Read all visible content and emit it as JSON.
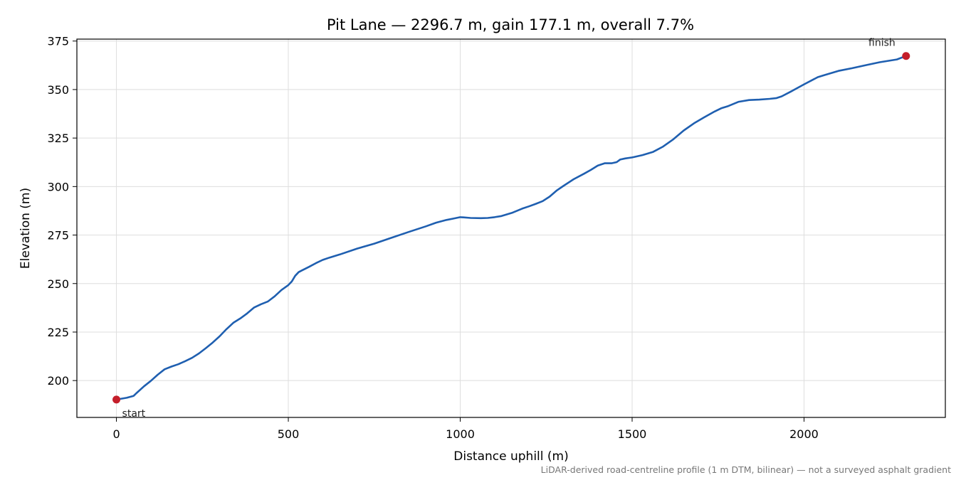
{
  "chart_data": {
    "type": "line",
    "title": "Pit Lane — 2296.7 m, gain 177.1 m, overall 7.7%",
    "xlabel": "Distance uphill (m)",
    "ylabel": "Elevation (m)",
    "xlim": [
      -115,
      2411
    ],
    "ylim": [
      181,
      376
    ],
    "x_ticks": [
      0,
      500,
      1000,
      1500,
      2000
    ],
    "y_ticks": [
      200,
      225,
      250,
      275,
      300,
      325,
      350,
      375
    ],
    "grid": true,
    "footnote": "LiDAR-derived road-centreline profile (1 m DTM, bilinear) — not a surveyed asphalt gradient",
    "series": [
      {
        "color": "#1f5fb0",
        "x": [
          0,
          30,
          50,
          60,
          80,
          100,
          120,
          140,
          160,
          180,
          200,
          220,
          240,
          260,
          280,
          300,
          320,
          340,
          360,
          380,
          400,
          420,
          440,
          460,
          480,
          500,
          510,
          520,
          530,
          540,
          560,
          580,
          600,
          620,
          650,
          700,
          750,
          800,
          850,
          900,
          930,
          960,
          980,
          1000,
          1010,
          1030,
          1060,
          1080,
          1100,
          1120,
          1150,
          1180,
          1200,
          1220,
          1240,
          1260,
          1280,
          1300,
          1330,
          1360,
          1380,
          1400,
          1420,
          1440,
          1455,
          1465,
          1480,
          1500,
          1530,
          1560,
          1590,
          1620,
          1650,
          1680,
          1710,
          1740,
          1760,
          1780,
          1810,
          1840,
          1870,
          1900,
          1920,
          1935,
          1960,
          2000,
          2040,
          2060,
          2100,
          2140,
          2180,
          2220,
          2270,
          2296.7
        ],
        "y": [
          190.2,
          191.1,
          192.1,
          193.8,
          197.0,
          199.8,
          203.0,
          205.8,
          207.2,
          208.4,
          210.0,
          211.7,
          214.0,
          216.7,
          219.6,
          222.8,
          226.5,
          229.8,
          232.0,
          234.6,
          237.6,
          239.3,
          240.7,
          243.4,
          246.7,
          249.2,
          251.1,
          254.0,
          255.9,
          256.8,
          258.6,
          260.5,
          262.2,
          263.4,
          265.0,
          268.0,
          270.6,
          273.6,
          276.6,
          279.5,
          281.4,
          282.8,
          283.5,
          284.2,
          284.1,
          283.8,
          283.7,
          283.8,
          284.2,
          284.8,
          286.4,
          288.6,
          289.8,
          291.1,
          292.5,
          294.8,
          297.9,
          300.3,
          303.8,
          306.6,
          308.6,
          310.8,
          312.0,
          312.0,
          312.6,
          313.9,
          314.5,
          315.0,
          316.2,
          317.8,
          320.6,
          324.4,
          328.9,
          332.6,
          335.7,
          338.7,
          340.4,
          341.5,
          343.7,
          344.6,
          344.8,
          345.2,
          345.6,
          346.5,
          348.8,
          352.7,
          356.4,
          357.5,
          359.6,
          361.0,
          362.6,
          364.1,
          365.5,
          367.3
        ]
      }
    ],
    "markers": [
      {
        "x": 0,
        "y": 190.2,
        "label": "start",
        "color": "#c41e2a"
      },
      {
        "x": 2296.7,
        "y": 367.3,
        "label": "finish",
        "color": "#c41e2a"
      }
    ]
  }
}
